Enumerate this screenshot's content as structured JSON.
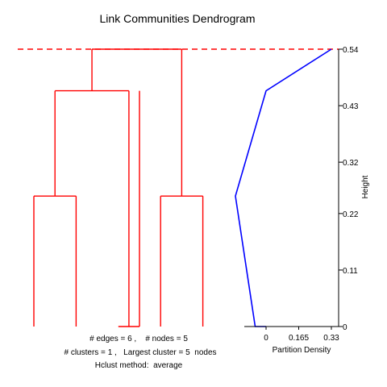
{
  "chart_data": {
    "type": "dendrogram",
    "title": "Link Communities Dendrogram",
    "height_axis": {
      "label": "Height",
      "ticks": [
        "0.54",
        "0.43",
        "0.32",
        "0.22",
        "0.11",
        "0"
      ],
      "range": [
        0,
        0.54
      ]
    },
    "cut_height": 0.54,
    "leaf_count": 6,
    "merges": [
      {
        "left": 1,
        "right": 2,
        "height": 0.254
      },
      {
        "left": 4,
        "right": 5,
        "height": 0.254
      },
      {
        "left": 3,
        "right": 3.5,
        "height": 0
      },
      {
        "left": 1.5,
        "right": 3.25,
        "height": 0.459
      },
      {
        "left": 2.375,
        "right": 4.5,
        "height": 0.54
      }
    ],
    "leaf_stubs": [
      {
        "x": 1,
        "height": 0.254
      },
      {
        "x": 2,
        "height": 0.254
      },
      {
        "x": 3.5,
        "height": 0.459
      },
      {
        "x": 4,
        "height": 0.254
      },
      {
        "x": 5,
        "height": 0.254
      }
    ],
    "partition_density": {
      "xlabel": "Partition Density",
      "x_ticks": [
        "0",
        "0.165",
        "0.33"
      ],
      "xlim": [
        0,
        0.33
      ],
      "points": [
        {
          "density": 0.33,
          "height": 0.54
        },
        {
          "density": 0.0,
          "height": 0.459
        },
        {
          "density": -0.155,
          "height": 0.254
        },
        {
          "density": -0.055,
          "height": 0.0
        },
        {
          "density": 0.0,
          "height": 0.0
        }
      ]
    },
    "colors": {
      "dendrogram": "#ff0000",
      "density": "#0000ff",
      "axis": "#000000"
    },
    "info": {
      "edges_label": "# edges = ",
      "edges": "6",
      "nodes_label": "# nodes = ",
      "nodes": "5",
      "clusters_label": "# clusters = ",
      "clusters": "1",
      "largest_label": "Largest cluster = ",
      "largest": "5",
      "largest_unit": "nodes",
      "method_label": "Hclust method:",
      "method": "average"
    }
  }
}
